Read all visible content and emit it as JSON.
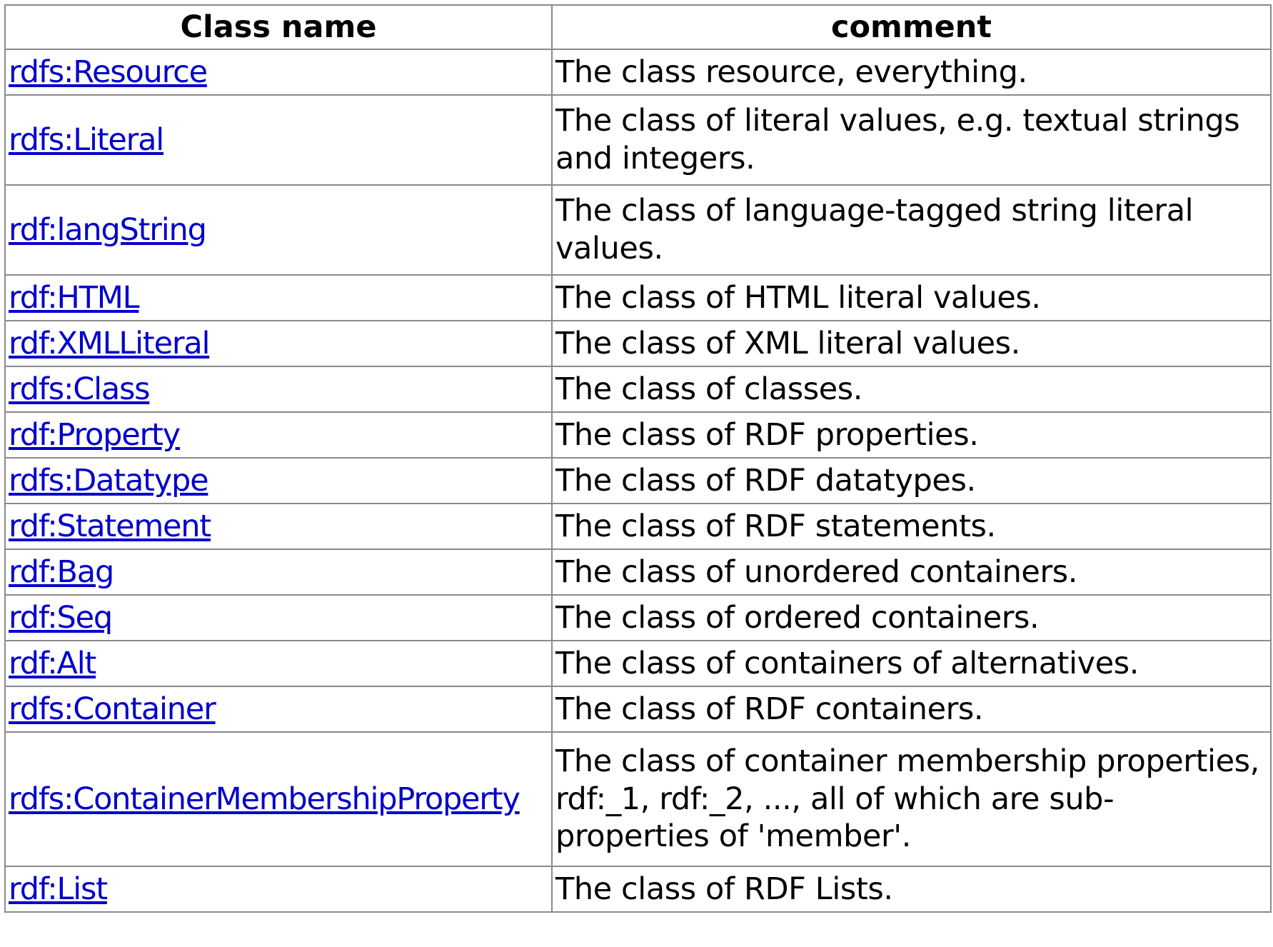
{
  "table": {
    "headers": [
      "Class name",
      "comment"
    ],
    "rows": [
      {
        "name": "rdfs:Resource",
        "comment": "The class resource, everything."
      },
      {
        "name": "rdfs:Literal",
        "comment": "The class of literal values, e.g. textual strings and integers."
      },
      {
        "name": "rdf:langString",
        "comment": "The class of language-tagged string literal values."
      },
      {
        "name": "rdf:HTML",
        "comment": "The class of HTML literal values."
      },
      {
        "name": "rdf:XMLLiteral",
        "comment": "The class of XML literal values."
      },
      {
        "name": "rdfs:Class",
        "comment": "The class of classes."
      },
      {
        "name": "rdf:Property",
        "comment": "The class of RDF properties."
      },
      {
        "name": "rdfs:Datatype",
        "comment": "The class of RDF datatypes."
      },
      {
        "name": "rdf:Statement",
        "comment": "The class of RDF statements."
      },
      {
        "name": "rdf:Bag",
        "comment": "The class of unordered containers."
      },
      {
        "name": "rdf:Seq",
        "comment": "The class of ordered containers."
      },
      {
        "name": "rdf:Alt",
        "comment": "The class of containers of alternatives."
      },
      {
        "name": "rdfs:Container",
        "comment": "The class of RDF containers."
      },
      {
        "name": "rdfs:ContainerMembershipProperty",
        "comment": "The class of container membership properties, rdf:_1, rdf:_2, ..., all of which are sub-properties of 'member'."
      },
      {
        "name": "rdf:List",
        "comment": "The class of RDF Lists."
      }
    ]
  },
  "colors": {
    "link": "#0000cc",
    "border": "#8a8a8a",
    "text": "#000000"
  }
}
